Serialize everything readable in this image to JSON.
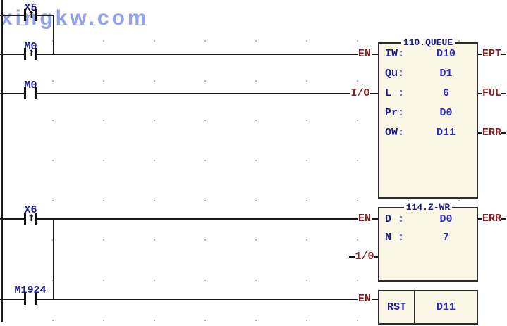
{
  "watermark": {
    "text": "xingkw.com"
  },
  "icons": {
    "rising_edge": "↑"
  },
  "colors": {
    "label_navy": "#191989",
    "value_blue": "#2b2bd0",
    "pin_maroon": "#8c1f1f",
    "box_fill": "#fbf7e6",
    "line": "#1a1a1a",
    "grid_dot": "#b4b4b4",
    "watermark_blue": "#8191e8"
  },
  "contacts": [
    {
      "label": "X5",
      "type": "rising-edge"
    },
    {
      "label": "M0",
      "type": "rising-edge"
    },
    {
      "label": "M0",
      "type": "normally-open"
    },
    {
      "label": "X6",
      "type": "rising-edge"
    },
    {
      "label": "M1924",
      "type": "normally-open"
    }
  ],
  "function_blocks": {
    "queue": {
      "title": "110.QUEUE",
      "params": [
        {
          "label": "IW:",
          "value": "D10"
        },
        {
          "label": "Qu:",
          "value": "D1"
        },
        {
          "label": "L :",
          "value": "6"
        },
        {
          "label": "Pr:",
          "value": "D0"
        },
        {
          "label": "OW:",
          "value": "D11"
        }
      ],
      "pins": {
        "en": "EN",
        "io": "I/O",
        "ept": "EPT",
        "ful": "FUL",
        "err": "ERR"
      }
    },
    "zwr": {
      "title": "114.Z-WR",
      "params": [
        {
          "label": "D :",
          "value": "D0"
        },
        {
          "label": "N :",
          "value": "7"
        }
      ],
      "pins": {
        "en": "EN",
        "io": "1/0",
        "err": "ERR"
      }
    },
    "rst": {
      "op": "RST",
      "operand": "D11",
      "pins": {
        "en": "EN"
      }
    }
  }
}
